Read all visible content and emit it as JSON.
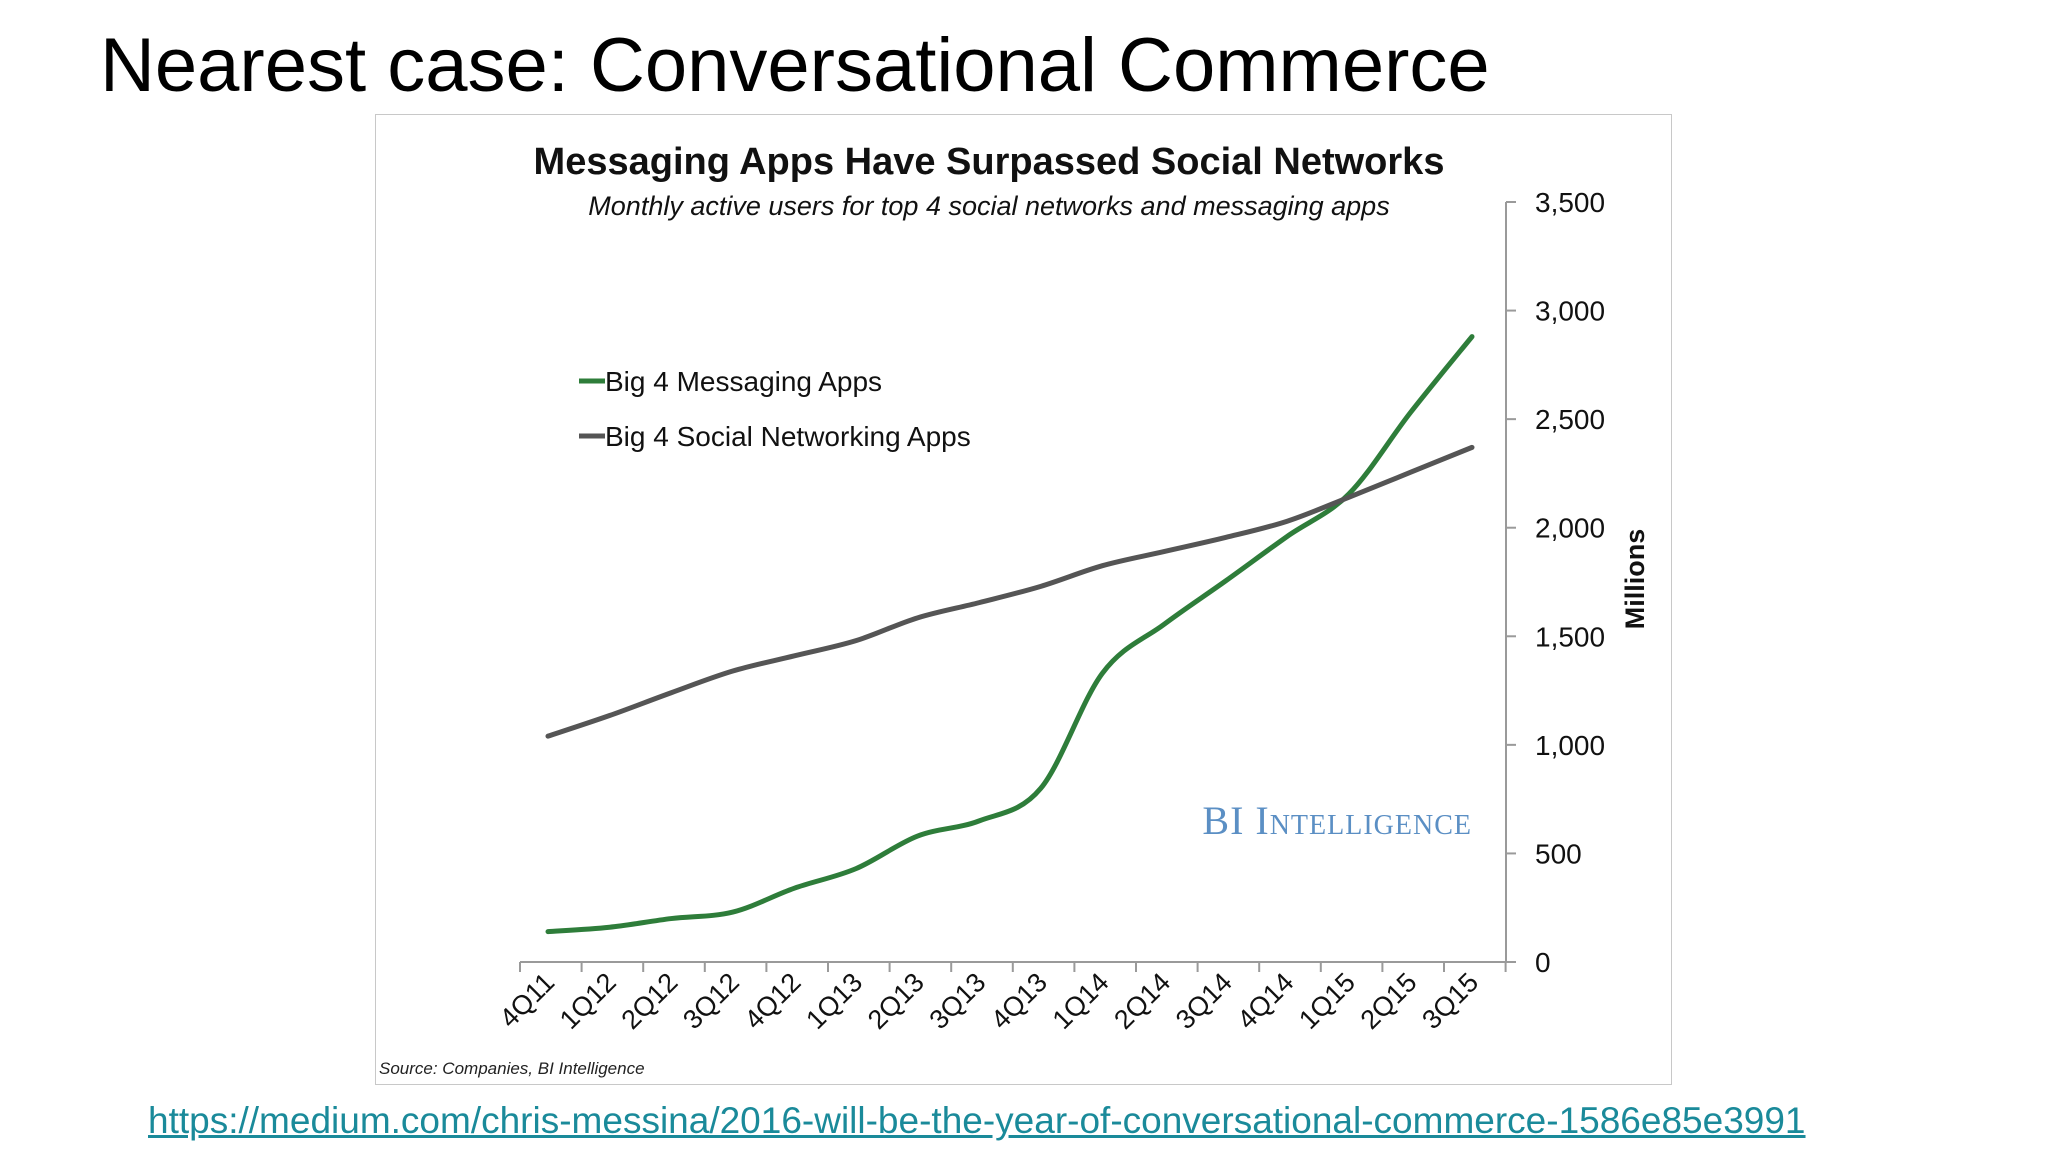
{
  "slide": {
    "title": "Nearest case: Conversational Commerce",
    "link": "https://medium.com/chris-messina/2016-will-be-the-year-of-conversational-commerce-1586e85e3991"
  },
  "chart_data": {
    "type": "line",
    "title": "Messaging Apps Have Surpassed Social Networks",
    "subtitle": "Monthly active users for top 4 social networks and messaging apps",
    "ylabel": "Millions",
    "xlabel": "",
    "ylim": [
      0,
      3500
    ],
    "yticks": [
      "0",
      "500",
      "1,000",
      "1,500",
      "2,000",
      "2,500",
      "3,000",
      "3,500"
    ],
    "ytick_values": [
      0,
      500,
      1000,
      1500,
      2000,
      2500,
      3000,
      3500
    ],
    "y_axis_side": "right",
    "grid": false,
    "legend_placement": "upper-left",
    "categories": [
      "4Q11",
      "1Q12",
      "2Q12",
      "3Q12",
      "4Q12",
      "1Q13",
      "2Q13",
      "3Q13",
      "4Q13",
      "1Q14",
      "2Q14",
      "3Q14",
      "4Q14",
      "1Q15",
      "2Q15",
      "3Q15"
    ],
    "series": [
      {
        "name": "Big 4 Messaging Apps",
        "color": "#2e7d3a",
        "values": [
          140,
          160,
          200,
          230,
          340,
          430,
          580,
          650,
          800,
          1330,
          1555,
          1755,
          1960,
          2155,
          2530,
          2880
        ]
      },
      {
        "name": "Big 4 Social Networking Apps",
        "color": "#555555",
        "values": [
          1040,
          1135,
          1240,
          1340,
          1410,
          1480,
          1585,
          1655,
          1730,
          1825,
          1890,
          1955,
          2030,
          2140,
          2255,
          2370
        ]
      }
    ],
    "watermark": "BI Intelligence",
    "watermark_color": "#5b8fc4",
    "source": "Source: Companies, BI Intelligence"
  }
}
